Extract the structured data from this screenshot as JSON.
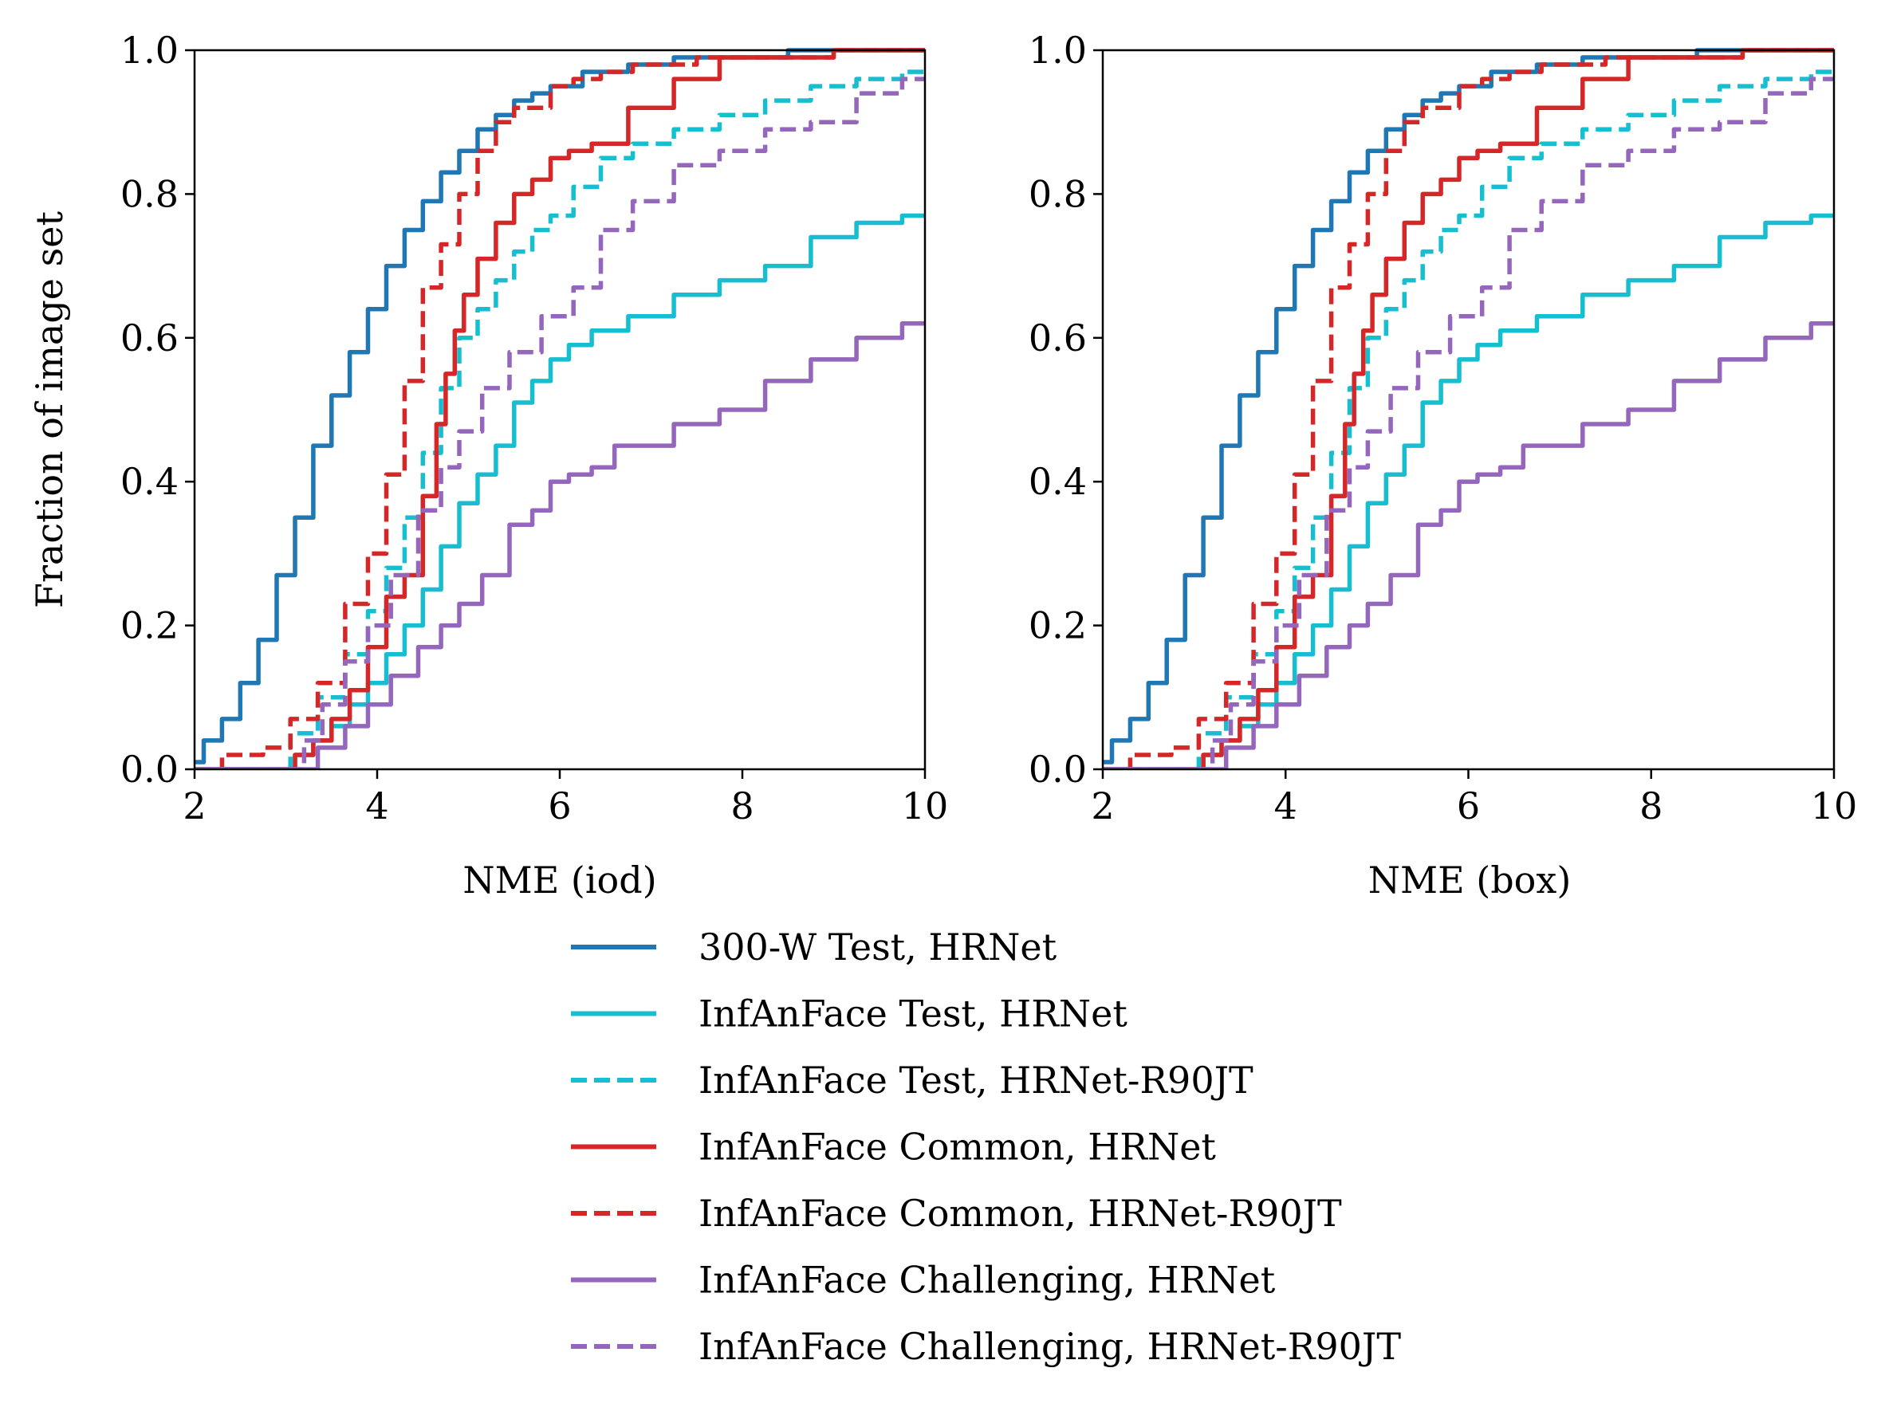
{
  "chart_data": [
    {
      "type": "line",
      "xlabel": "NME (iod)",
      "ylabel": "Fraction of image set",
      "xlim": [
        2,
        10
      ],
      "ylim": [
        0,
        1
      ],
      "xticks": [
        "2",
        "4",
        "6",
        "8",
        "10"
      ],
      "yticks": [
        "0.0",
        "0.2",
        "0.4",
        "0.6",
        "0.8",
        "1.0"
      ],
      "grid": false,
      "series": [
        {
          "name": "300-W Test, HRNet",
          "color": "#1f77b4",
          "dash": "solid",
          "x": [
            2.0,
            2.2,
            2.4,
            2.6,
            2.8,
            3.0,
            3.2,
            3.4,
            3.6,
            3.8,
            4.0,
            4.2,
            4.4,
            4.6,
            4.8,
            5.0,
            5.2,
            5.4,
            5.6,
            5.8,
            6.0,
            6.5,
            7.0,
            7.5,
            8.0,
            9.0,
            10.0
          ],
          "y": [
            0.01,
            0.04,
            0.07,
            0.12,
            0.18,
            0.27,
            0.35,
            0.45,
            0.52,
            0.58,
            0.64,
            0.7,
            0.75,
            0.79,
            0.83,
            0.86,
            0.89,
            0.91,
            0.93,
            0.94,
            0.95,
            0.97,
            0.98,
            0.99,
            0.99,
            1.0,
            1.0
          ]
        },
        {
          "name": "InfAnFace Test, HRNet",
          "color": "#17becf",
          "dash": "solid",
          "x": [
            2.0,
            3.0,
            3.2,
            3.4,
            3.6,
            3.8,
            4.0,
            4.2,
            4.4,
            4.6,
            4.8,
            5.0,
            5.2,
            5.4,
            5.6,
            5.8,
            6.0,
            6.2,
            6.5,
            7.0,
            7.5,
            8.0,
            8.5,
            9.0,
            9.5,
            10.0
          ],
          "y": [
            0.0,
            0.0,
            0.02,
            0.04,
            0.06,
            0.09,
            0.12,
            0.16,
            0.2,
            0.25,
            0.31,
            0.37,
            0.41,
            0.45,
            0.51,
            0.54,
            0.57,
            0.59,
            0.61,
            0.63,
            0.66,
            0.68,
            0.7,
            0.74,
            0.76,
            0.77
          ]
        },
        {
          "name": "InfAnFace Test, HRNet-R90JT",
          "color": "#17becf",
          "dash": "dashed",
          "x": [
            2.0,
            2.9,
            3.2,
            3.5,
            3.8,
            4.0,
            4.2,
            4.4,
            4.6,
            4.8,
            5.0,
            5.2,
            5.4,
            5.6,
            5.8,
            6.0,
            6.3,
            6.6,
            7.0,
            7.5,
            8.0,
            8.5,
            9.0,
            9.5,
            10.0
          ],
          "y": [
            0.0,
            0.0,
            0.05,
            0.1,
            0.16,
            0.22,
            0.28,
            0.35,
            0.44,
            0.53,
            0.6,
            0.64,
            0.68,
            0.72,
            0.75,
            0.77,
            0.81,
            0.85,
            0.87,
            0.89,
            0.91,
            0.93,
            0.95,
            0.96,
            0.97
          ]
        },
        {
          "name": "InfAnFace Common, HRNet",
          "color": "#d62728",
          "dash": "solid",
          "x": [
            2.0,
            3.0,
            3.2,
            3.4,
            3.6,
            3.8,
            4.0,
            4.2,
            4.4,
            4.6,
            4.7,
            4.8,
            4.9,
            5.0,
            5.2,
            5.4,
            5.6,
            5.8,
            6.0,
            6.2,
            6.5,
            7.0,
            7.5,
            8.0,
            10.0
          ],
          "y": [
            0.0,
            0.0,
            0.02,
            0.04,
            0.07,
            0.11,
            0.17,
            0.24,
            0.27,
            0.38,
            0.48,
            0.55,
            0.61,
            0.66,
            0.71,
            0.76,
            0.8,
            0.82,
            0.85,
            0.86,
            0.87,
            0.92,
            0.96,
            0.99,
            1.0
          ]
        },
        {
          "name": "InfAnFace Common, HRNet-R90JT",
          "color": "#d62728",
          "dash": "dashed",
          "x": [
            2.0,
            2.6,
            2.9,
            3.2,
            3.5,
            3.8,
            4.0,
            4.2,
            4.4,
            4.6,
            4.8,
            5.0,
            5.2,
            5.4,
            5.6,
            5.8,
            6.0,
            6.3,
            6.6,
            7.0,
            8.0,
            10.0
          ],
          "y": [
            0.0,
            0.02,
            0.03,
            0.07,
            0.12,
            0.23,
            0.3,
            0.41,
            0.54,
            0.67,
            0.73,
            0.8,
            0.86,
            0.9,
            0.92,
            0.92,
            0.95,
            0.96,
            0.97,
            0.98,
            0.99,
            1.0
          ]
        },
        {
          "name": "InfAnFace Challenging, HRNet",
          "color": "#9467bd",
          "dash": "solid",
          "x": [
            2.0,
            3.2,
            3.5,
            3.8,
            4.0,
            4.3,
            4.6,
            4.8,
            5.0,
            5.3,
            5.6,
            5.8,
            6.0,
            6.2,
            6.5,
            6.7,
            7.0,
            7.5,
            8.0,
            8.5,
            9.0,
            9.5,
            10.0
          ],
          "y": [
            0.0,
            0.0,
            0.03,
            0.06,
            0.09,
            0.13,
            0.17,
            0.2,
            0.23,
            0.27,
            0.34,
            0.36,
            0.4,
            0.41,
            0.42,
            0.45,
            0.45,
            0.48,
            0.5,
            0.54,
            0.57,
            0.6,
            0.62
          ]
        },
        {
          "name": "InfAnFace Challenging, HRNet-R90JT",
          "color": "#9467bd",
          "dash": "dashed",
          "x": [
            2.0,
            3.1,
            3.3,
            3.5,
            3.8,
            4.0,
            4.3,
            4.6,
            4.8,
            5.0,
            5.3,
            5.6,
            6.0,
            6.3,
            6.6,
            7.0,
            7.5,
            8.0,
            8.5,
            9.0,
            9.5,
            10.0
          ],
          "y": [
            0.0,
            0.0,
            0.04,
            0.09,
            0.15,
            0.2,
            0.27,
            0.36,
            0.42,
            0.47,
            0.53,
            0.58,
            0.63,
            0.67,
            0.75,
            0.79,
            0.84,
            0.86,
            0.89,
            0.9,
            0.94,
            0.96
          ]
        }
      ]
    },
    {
      "type": "line",
      "xlabel": "NME (box)",
      "ylabel": "",
      "xlim": [
        2,
        10
      ],
      "ylim": [
        0,
        1
      ],
      "xticks": [
        "2",
        "4",
        "6",
        "8",
        "10"
      ],
      "yticks": [
        "0.0",
        "0.2",
        "0.4",
        "0.6",
        "0.8",
        "1.0"
      ],
      "grid": false,
      "series": [
        {
          "name": "300-W Test, HRNet",
          "color": "#1f77b4",
          "dash": "solid",
          "x": [
            2.0,
            2.2,
            2.4,
            2.6,
            2.8,
            3.0,
            3.2,
            3.4,
            3.6,
            3.8,
            4.0,
            4.2,
            4.4,
            4.6,
            4.8,
            5.0,
            5.2,
            5.4,
            5.6,
            5.8,
            6.0,
            6.5,
            7.0,
            7.5,
            8.0,
            9.0,
            10.0
          ],
          "y": [
            0.01,
            0.04,
            0.07,
            0.12,
            0.18,
            0.27,
            0.35,
            0.45,
            0.52,
            0.58,
            0.64,
            0.7,
            0.75,
            0.79,
            0.83,
            0.86,
            0.89,
            0.91,
            0.93,
            0.94,
            0.95,
            0.97,
            0.98,
            0.99,
            0.99,
            1.0,
            1.0
          ]
        },
        {
          "name": "InfAnFace Test, HRNet",
          "color": "#17becf",
          "dash": "solid",
          "x": [
            2.0,
            3.0,
            3.2,
            3.4,
            3.6,
            3.8,
            4.0,
            4.2,
            4.4,
            4.6,
            4.8,
            5.0,
            5.2,
            5.4,
            5.6,
            5.8,
            6.0,
            6.2,
            6.5,
            7.0,
            7.5,
            8.0,
            8.5,
            9.0,
            9.5,
            10.0
          ],
          "y": [
            0.0,
            0.0,
            0.02,
            0.04,
            0.06,
            0.09,
            0.12,
            0.16,
            0.2,
            0.25,
            0.31,
            0.37,
            0.41,
            0.45,
            0.51,
            0.54,
            0.57,
            0.59,
            0.61,
            0.63,
            0.66,
            0.68,
            0.7,
            0.74,
            0.76,
            0.77
          ]
        },
        {
          "name": "InfAnFace Test, HRNet-R90JT",
          "color": "#17becf",
          "dash": "dashed",
          "x": [
            2.0,
            2.9,
            3.2,
            3.5,
            3.8,
            4.0,
            4.2,
            4.4,
            4.6,
            4.8,
            5.0,
            5.2,
            5.4,
            5.6,
            5.8,
            6.0,
            6.3,
            6.6,
            7.0,
            7.5,
            8.0,
            8.5,
            9.0,
            9.5,
            10.0
          ],
          "y": [
            0.0,
            0.0,
            0.05,
            0.1,
            0.16,
            0.22,
            0.28,
            0.35,
            0.44,
            0.53,
            0.6,
            0.64,
            0.68,
            0.72,
            0.75,
            0.77,
            0.81,
            0.85,
            0.87,
            0.89,
            0.91,
            0.93,
            0.95,
            0.96,
            0.97
          ]
        },
        {
          "name": "InfAnFace Common, HRNet",
          "color": "#d62728",
          "dash": "solid",
          "x": [
            2.0,
            3.0,
            3.2,
            3.4,
            3.6,
            3.8,
            4.0,
            4.2,
            4.4,
            4.6,
            4.7,
            4.8,
            4.9,
            5.0,
            5.2,
            5.4,
            5.6,
            5.8,
            6.0,
            6.2,
            6.5,
            7.0,
            7.5,
            8.0,
            10.0
          ],
          "y": [
            0.0,
            0.0,
            0.02,
            0.04,
            0.07,
            0.11,
            0.17,
            0.24,
            0.27,
            0.38,
            0.48,
            0.55,
            0.61,
            0.66,
            0.71,
            0.76,
            0.8,
            0.82,
            0.85,
            0.86,
            0.87,
            0.92,
            0.96,
            0.99,
            1.0
          ]
        },
        {
          "name": "InfAnFace Common, HRNet-R90JT",
          "color": "#d62728",
          "dash": "dashed",
          "x": [
            2.0,
            2.6,
            2.9,
            3.2,
            3.5,
            3.8,
            4.0,
            4.2,
            4.4,
            4.6,
            4.8,
            5.0,
            5.2,
            5.4,
            5.6,
            5.8,
            6.0,
            6.3,
            6.6,
            7.0,
            8.0,
            10.0
          ],
          "y": [
            0.0,
            0.02,
            0.03,
            0.07,
            0.12,
            0.23,
            0.3,
            0.41,
            0.54,
            0.67,
            0.73,
            0.8,
            0.86,
            0.9,
            0.92,
            0.92,
            0.95,
            0.96,
            0.97,
            0.98,
            0.99,
            1.0
          ]
        },
        {
          "name": "InfAnFace Challenging, HRNet",
          "color": "#9467bd",
          "dash": "solid",
          "x": [
            2.0,
            3.2,
            3.5,
            3.8,
            4.0,
            4.3,
            4.6,
            4.8,
            5.0,
            5.3,
            5.6,
            5.8,
            6.0,
            6.2,
            6.5,
            6.7,
            7.0,
            7.5,
            8.0,
            8.5,
            9.0,
            9.5,
            10.0
          ],
          "y": [
            0.0,
            0.0,
            0.03,
            0.06,
            0.09,
            0.13,
            0.17,
            0.2,
            0.23,
            0.27,
            0.34,
            0.36,
            0.4,
            0.41,
            0.42,
            0.45,
            0.45,
            0.48,
            0.5,
            0.54,
            0.57,
            0.6,
            0.62
          ]
        },
        {
          "name": "InfAnFace Challenging, HRNet-R90JT",
          "color": "#9467bd",
          "dash": "dashed",
          "x": [
            2.0,
            3.1,
            3.3,
            3.5,
            3.8,
            4.0,
            4.3,
            4.6,
            4.8,
            5.0,
            5.3,
            5.6,
            6.0,
            6.3,
            6.6,
            7.0,
            7.5,
            8.0,
            8.5,
            9.0,
            9.5,
            10.0
          ],
          "y": [
            0.0,
            0.0,
            0.04,
            0.09,
            0.15,
            0.2,
            0.27,
            0.36,
            0.42,
            0.47,
            0.53,
            0.58,
            0.63,
            0.67,
            0.75,
            0.79,
            0.84,
            0.86,
            0.89,
            0.9,
            0.94,
            0.96
          ]
        }
      ]
    }
  ],
  "legend": {
    "placement": "bottom-center",
    "entries": [
      {
        "label": "300-W Test, HRNet",
        "color": "#1f77b4",
        "dash": "solid"
      },
      {
        "label": "InfAnFace Test, HRNet",
        "color": "#17becf",
        "dash": "solid"
      },
      {
        "label": "InfAnFace Test, HRNet-R90JT",
        "color": "#17becf",
        "dash": "dashed"
      },
      {
        "label": "InfAnFace Common, HRNet",
        "color": "#d62728",
        "dash": "solid"
      },
      {
        "label": "InfAnFace Common, HRNet-R90JT",
        "color": "#d62728",
        "dash": "dashed"
      },
      {
        "label": "InfAnFace Challenging, HRNet",
        "color": "#9467bd",
        "dash": "solid"
      },
      {
        "label": "InfAnFace Challenging, HRNet-R90JT",
        "color": "#9467bd",
        "dash": "dashed"
      }
    ]
  }
}
